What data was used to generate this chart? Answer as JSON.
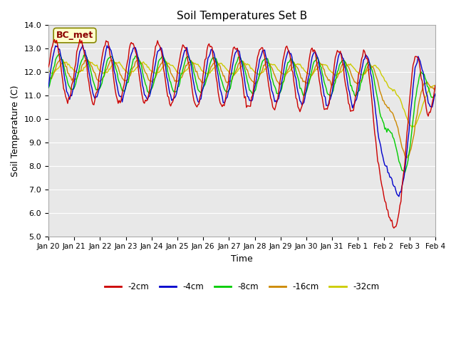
{
  "title": "Soil Temperatures Set B",
  "xlabel": "Time",
  "ylabel": "Soil Temperature (C)",
  "ylim": [
    5.0,
    14.0
  ],
  "yticks": [
    5.0,
    6.0,
    7.0,
    8.0,
    9.0,
    10.0,
    11.0,
    12.0,
    13.0,
    14.0
  ],
  "background_color": "#ffffff",
  "plot_bg_color": "#e8e8e8",
  "legend_label": "BC_met",
  "line_colors": {
    "-2cm": "#cc0000",
    "-4cm": "#0000cc",
    "-8cm": "#00cc00",
    "-16cm": "#cc8800",
    "-32cm": "#cccc00"
  },
  "n_points": 384,
  "x_tick_labels": [
    "Jan 20",
    "Jan 21",
    "Jan 22",
    "Jan 23",
    "Jan 24",
    "Jan 25",
    "Jan 26",
    "Jan 27",
    "Jan 28",
    "Jan 29",
    "Jan 30",
    "Jan 31",
    "Feb 1",
    "Feb 2",
    "Feb 3",
    "Feb 4"
  ],
  "x_tick_positions": [
    0,
    1,
    2,
    3,
    4,
    5,
    6,
    7,
    8,
    9,
    10,
    11,
    12,
    13,
    14,
    15
  ]
}
